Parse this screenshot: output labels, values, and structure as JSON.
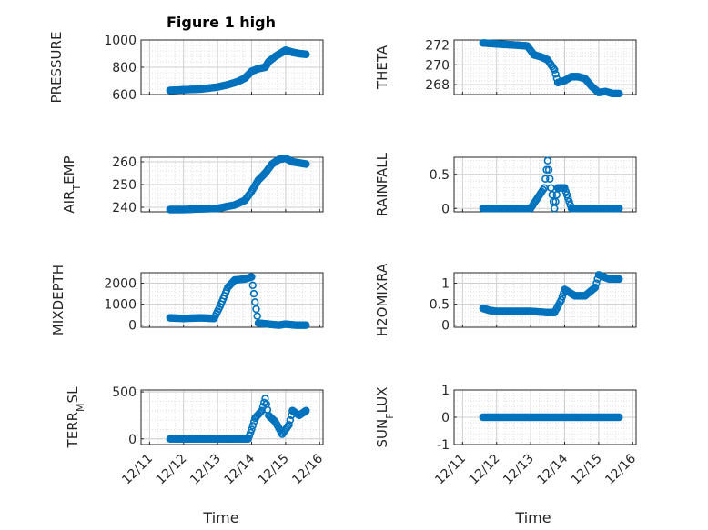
{
  "figure": {
    "title": "Figure 1 high",
    "xlabel": "Time"
  },
  "style": {
    "marker_color": "#0072BD",
    "axis_color": "#262626",
    "grid_color": "#DFDFDF"
  },
  "chart_data": [
    {
      "type": "scatter",
      "name": "pressure",
      "ylabel": "PRESSURE",
      "ylabel_sub": "",
      "ylabel_after": "",
      "xlim": [
        "12/11",
        "12/16"
      ],
      "ylim": [
        600,
        1000
      ],
      "yticks": [
        600,
        800,
        1000
      ],
      "xticks": [
        "12/11",
        "12/12",
        "12/13",
        "12/14",
        "12/15",
        "12/16"
      ],
      "points": [
        [
          "12/11.6",
          630
        ],
        [
          "12/12",
          635
        ],
        [
          "12/12.5",
          640
        ],
        [
          "12/13",
          655
        ],
        [
          "12/13.3",
          672
        ],
        [
          "12/13.6",
          695
        ],
        [
          "12/13.8",
          720
        ],
        [
          "12/14",
          770
        ],
        [
          "12/14.2",
          790
        ],
        [
          "12/14.4",
          800
        ],
        [
          "12/14.5",
          840
        ],
        [
          "12/14.7",
          880
        ],
        [
          "12/14.9",
          910
        ],
        [
          "12/15",
          925
        ],
        [
          "12/15.2",
          910
        ],
        [
          "12/15.4",
          900
        ],
        [
          "12/15.6",
          895
        ]
      ]
    },
    {
      "type": "scatter",
      "name": "theta",
      "ylabel": "THETA",
      "ylabel_sub": "",
      "ylabel_after": "",
      "xlim": [
        "12/11",
        "12/16"
      ],
      "ylim": [
        267,
        272.5
      ],
      "yticks": [
        268,
        270,
        272
      ],
      "xticks": [
        "12/11",
        "12/12",
        "12/13",
        "12/14",
        "12/15",
        "12/16"
      ],
      "points": [
        [
          "12/11.6",
          272.2
        ],
        [
          "12/12",
          272.1
        ],
        [
          "12/12.5",
          272
        ],
        [
          "12/12.9",
          271.9
        ],
        [
          "12/13.1",
          271
        ],
        [
          "12/13.3",
          270.8
        ],
        [
          "12/13.5",
          270.5
        ],
        [
          "12/13.7",
          269.5
        ],
        [
          "12/13.8",
          268.2
        ],
        [
          "12/14",
          268.4
        ],
        [
          "12/14.2",
          268.8
        ],
        [
          "12/14.4",
          268.8
        ],
        [
          "12/14.6",
          268.6
        ],
        [
          "12/14.8",
          267.8
        ],
        [
          "12/15",
          267.2
        ],
        [
          "12/15.2",
          267.3
        ],
        [
          "12/15.4",
          267.1
        ],
        [
          "12/15.6",
          267.1
        ]
      ]
    },
    {
      "type": "scatter",
      "name": "air-temp",
      "ylabel": "AIR",
      "ylabel_sub": "T",
      "ylabel_after": "EMP",
      "xlim": [
        "12/11",
        "12/16"
      ],
      "ylim": [
        238,
        262
      ],
      "yticks": [
        240,
        250,
        260
      ],
      "xticks": [
        "12/11",
        "12/12",
        "12/13",
        "12/14",
        "12/15",
        "12/16"
      ],
      "points": [
        [
          "12/11.6",
          239
        ],
        [
          "12/12",
          239
        ],
        [
          "12/12.5",
          239.3
        ],
        [
          "12/13",
          239.5
        ],
        [
          "12/13.5",
          241
        ],
        [
          "12/13.8",
          243
        ],
        [
          "12/14",
          247
        ],
        [
          "12/14.2",
          252
        ],
        [
          "12/14.4",
          255
        ],
        [
          "12/14.6",
          259
        ],
        [
          "12/14.8",
          261
        ],
        [
          "12/15",
          261.5
        ],
        [
          "12/15.2",
          260
        ],
        [
          "12/15.4",
          259.5
        ],
        [
          "12/15.6",
          259
        ]
      ]
    },
    {
      "type": "scatter",
      "name": "rainfall",
      "ylabel": "RAINFALL",
      "ylabel_sub": "",
      "ylabel_after": "",
      "xlim": [
        "12/11",
        "12/16"
      ],
      "ylim": [
        -0.05,
        0.75
      ],
      "yticks": [
        0,
        0.5
      ],
      "xticks": [
        "12/11",
        "12/12",
        "12/13",
        "12/14",
        "12/15",
        "12/16"
      ],
      "points": [
        [
          "12/11.6",
          0
        ],
        [
          "12/12",
          0
        ],
        [
          "12/12.5",
          0
        ],
        [
          "12/13",
          0
        ],
        [
          "12/13.4",
          0.3
        ],
        [
          "12/13.5",
          0.7
        ],
        [
          "12/13.6",
          0.3
        ],
        [
          "12/13.7",
          0
        ],
        [
          "12/13.8",
          0.3
        ],
        [
          "12/14",
          0.3
        ],
        [
          "12/14.2",
          0
        ],
        [
          "12/14.5",
          0
        ],
        [
          "12/15",
          0
        ],
        [
          "12/15.6",
          0
        ]
      ]
    },
    {
      "type": "scatter",
      "name": "mixdepth",
      "ylabel": "MIXDEPTH",
      "ylabel_sub": "",
      "ylabel_after": "",
      "xlim": [
        "12/11",
        "12/16"
      ],
      "ylim": [
        -100,
        2500
      ],
      "yticks": [
        0,
        1000,
        2000
      ],
      "xticks": [
        "12/11",
        "12/12",
        "12/13",
        "12/14",
        "12/15",
        "12/16"
      ],
      "points": [
        [
          "12/11.6",
          350
        ],
        [
          "12/12",
          320
        ],
        [
          "12/12.5",
          350
        ],
        [
          "12/12.9",
          320
        ],
        [
          "12/13.1",
          1000
        ],
        [
          "12/13.3",
          1800
        ],
        [
          "12/13.5",
          2150
        ],
        [
          "12/13.8",
          2200
        ],
        [
          "12/14",
          2300
        ],
        [
          "12/14.1",
          1100
        ],
        [
          "12/14.2",
          100
        ],
        [
          "12/14.5",
          50
        ],
        [
          "12/14.8",
          0
        ],
        [
          "12/15",
          50
        ],
        [
          "12/15.3",
          0
        ],
        [
          "12/15.6",
          0
        ]
      ]
    },
    {
      "type": "scatter",
      "name": "h2omixra",
      "ylabel": "H2OMIXRA",
      "ylabel_sub": "",
      "ylabel_after": "",
      "xlim": [
        "12/11",
        "12/16"
      ],
      "ylim": [
        -0.05,
        1.25
      ],
      "yticks": [
        0,
        0.5,
        1
      ],
      "xticks": [
        "12/11",
        "12/12",
        "12/13",
        "12/14",
        "12/15",
        "12/16"
      ],
      "points": [
        [
          "12/11.6",
          0.4
        ],
        [
          "12/11.8",
          0.35
        ],
        [
          "12/12",
          0.33
        ],
        [
          "12/12.5",
          0.33
        ],
        [
          "12/13",
          0.33
        ],
        [
          "12/13.5",
          0.3
        ],
        [
          "12/13.7",
          0.3
        ],
        [
          "12/13.9",
          0.6
        ],
        [
          "12/14",
          0.85
        ],
        [
          "12/14.3",
          0.7
        ],
        [
          "12/14.6",
          0.7
        ],
        [
          "12/14.9",
          0.9
        ],
        [
          "12/15",
          1.2
        ],
        [
          "12/15.3",
          1.1
        ],
        [
          "12/15.6",
          1.1
        ]
      ]
    },
    {
      "type": "scatter",
      "name": "terr-msl",
      "ylabel": "TERR",
      "ylabel_sub": "M",
      "ylabel_after": "SL",
      "xlim": [
        "12/11",
        "12/16"
      ],
      "ylim": [
        -60,
        520
      ],
      "yticks": [
        0,
        500
      ],
      "xticks": [
        "12/11",
        "12/12",
        "12/13",
        "12/14",
        "12/15",
        "12/16"
      ],
      "points": [
        [
          "12/11.6",
          0
        ],
        [
          "12/12",
          0
        ],
        [
          "12/12.5",
          0
        ],
        [
          "12/13",
          0
        ],
        [
          "12/13.5",
          0
        ],
        [
          "12/13.9",
          0
        ],
        [
          "12/14",
          100
        ],
        [
          "12/14.1",
          220
        ],
        [
          "12/14.3",
          300
        ],
        [
          "12/14.4",
          430
        ],
        [
          "12/14.5",
          250
        ],
        [
          "12/14.7",
          180
        ],
        [
          "12/14.9",
          50
        ],
        [
          "12/15.1",
          150
        ],
        [
          "12/15.2",
          300
        ],
        [
          "12/15.4",
          250
        ],
        [
          "12/15.6",
          300
        ]
      ]
    },
    {
      "type": "scatter",
      "name": "sun-flux",
      "ylabel": "SUN",
      "ylabel_sub": "F",
      "ylabel_after": "LUX",
      "xlim": [
        "12/11",
        "12/16"
      ],
      "ylim": [
        -1,
        1
      ],
      "yticks": [
        -1,
        0,
        1
      ],
      "xticks": [
        "12/11",
        "12/12",
        "12/13",
        "12/14",
        "12/15",
        "12/16"
      ],
      "points": [
        [
          "12/11.6",
          0
        ],
        [
          "12/12",
          0
        ],
        [
          "12/12.5",
          0
        ],
        [
          "12/13",
          0
        ],
        [
          "12/13.5",
          0
        ],
        [
          "12/14",
          0
        ],
        [
          "12/14.5",
          0
        ],
        [
          "12/15",
          0
        ],
        [
          "12/15.6",
          0
        ]
      ]
    }
  ]
}
